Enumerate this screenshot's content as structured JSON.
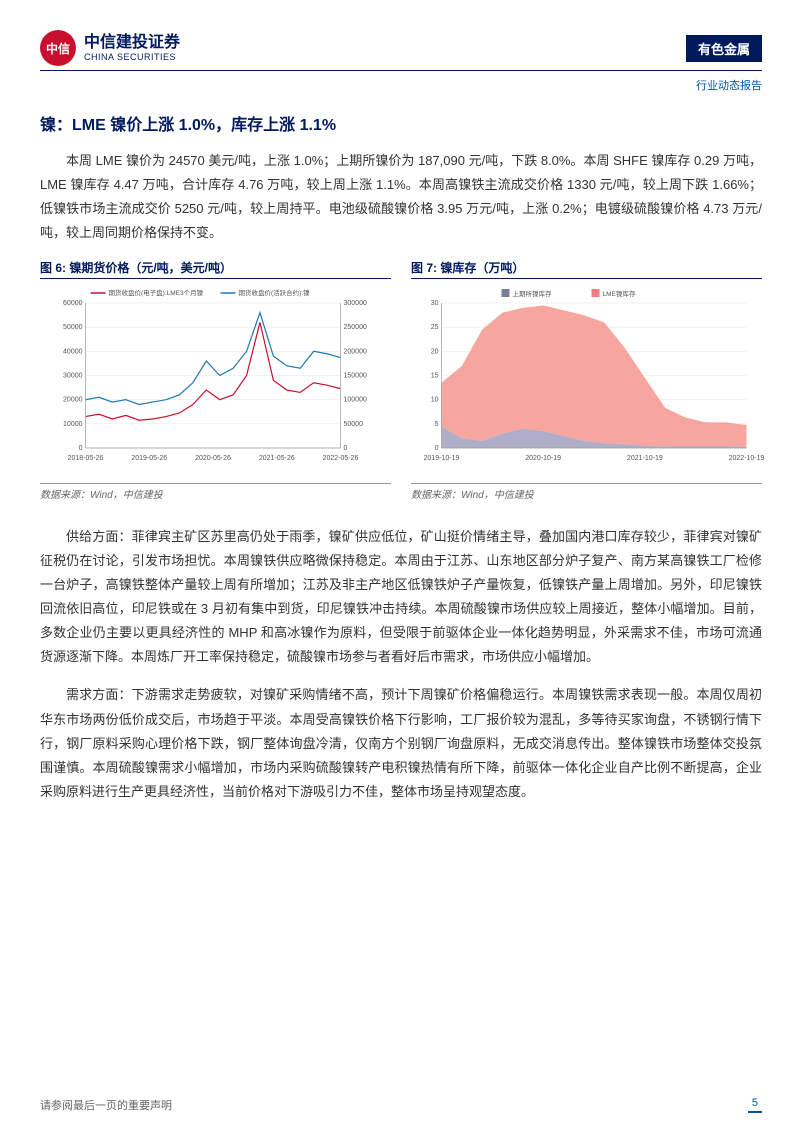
{
  "header": {
    "logo_cn": "中信建投证券",
    "logo_en": "CHINA SECURITIES",
    "logo_badge": "中信",
    "sector": "有色金属",
    "report_type": "行业动态报告"
  },
  "section": {
    "title": "镍：LME 镍价上涨 1.0%，库存上涨 1.1%"
  },
  "paragraphs": {
    "p1": "本周 LME 镍价为 24570 美元/吨，上涨 1.0%；上期所镍价为 187,090 元/吨，下跌 8.0%。本周 SHFE 镍库存 0.29 万吨，LME 镍库存 4.47 万吨，合计库存 4.76 万吨，较上周上涨 1.1%。本周高镍铁主流成交价格 1330 元/吨，较上周下跌 1.66%；低镍铁市场主流成交价 5250 元/吨，较上周持平。电池级硫酸镍价格 3.95 万元/吨，上涨 0.2%；电镀级硫酸镍价格 4.73 万元/吨，较上周同期价格保持不变。",
    "p2": "供给方面：菲律宾主矿区苏里高仍处于雨季，镍矿供应低位，矿山挺价情绪主导，叠加国内港口库存较少，菲律宾对镍矿征税仍在讨论，引发市场担忧。本周镍铁供应略微保持稳定。本周由于江苏、山东地区部分炉子复产、南方某高镍铁工厂检修一台炉子，高镍铁整体产量较上周有所增加；江苏及非主产地区低镍铁炉子产量恢复，低镍铁产量上周增加。另外，印尼镍铁回流依旧高位，印尼铁或在 3 月初有集中到货，印尼镍铁冲击持续。本周硫酸镍市场供应较上周接近，整体小幅增加。目前，多数企业仍主要以更具经济性的 MHP 和高冰镍作为原料，但受限于前驱体企业一体化趋势明显，外采需求不佳，市场可流通货源逐渐下降。本周炼厂开工率保持稳定，硫酸镍市场参与者看好后市需求，市场供应小幅增加。",
    "p3": "需求方面：下游需求走势疲软，对镍矿采购情绪不高，预计下周镍矿价格偏稳运行。本周镍铁需求表现一般。本周仅周初华东市场两份低价成交后，市场趋于平淡。本周受高镍铁价格下行影响，工厂报价较为混乱，多等待买家询盘，不锈钢行情下行，钢厂原料采购心理价格下跌，钢厂整体询盘冷清，仅南方个别钢厂询盘原料，无成交消息传出。整体镍铁市场整体交投氛围谨慎。本周硫酸镍需求小幅增加，市场内采购硫酸镍转产电积镍热情有所下降，前驱体一体化企业自产比例不断提高，企业采购原料进行生产更具经济性，当前价格对下游吸引力不佳，整体市场呈持观望态度。"
  },
  "figures": {
    "fig6": {
      "title": "图 6: 镍期货价格（元/吨，美元/吨）",
      "type": "line",
      "legend": [
        "期货收盘价(电子盘):LME3个月镍",
        "期货收盘价(活跃合约):镍"
      ],
      "legend_colors": [
        "#c8102e",
        "#1f77b4"
      ],
      "x_ticks": [
        "2018-05-26",
        "2019-05-26",
        "2020-05-26",
        "2021-05-26",
        "2022-05-26"
      ],
      "y1_ticks": [
        0,
        10000,
        20000,
        30000,
        40000,
        50000,
        60000
      ],
      "y2_ticks": [
        0,
        50000,
        100000,
        150000,
        200000,
        250000,
        300000
      ],
      "series1_color": "#c8102e",
      "series2_color": "#1f77b4",
      "series1_sample": [
        13000,
        14000,
        12000,
        13500,
        11500,
        12000,
        13000,
        14500,
        18000,
        24000,
        20000,
        22000,
        30000,
        52000,
        28000,
        24000,
        23000,
        27000,
        26000,
        24570
      ],
      "series2_sample": [
        100000,
        105000,
        95000,
        100000,
        90000,
        95000,
        100000,
        110000,
        135000,
        180000,
        150000,
        165000,
        200000,
        280000,
        190000,
        170000,
        165000,
        200000,
        195000,
        187090
      ],
      "background": "#ffffff",
      "grid_color": "#e5e5e5",
      "tick_fontsize": 7
    },
    "fig7": {
      "title": "图 7: 镍库存（万吨）",
      "type": "stacked_area",
      "legend": [
        "上期所镍库存",
        "LME镍库存"
      ],
      "legend_colors": [
        "#7d7d9e",
        "#f08080"
      ],
      "x_ticks": [
        "2019-10-19",
        "2020-10-19",
        "2021-10-19",
        "2022-10-19"
      ],
      "y_ticks": [
        0,
        5,
        10,
        15,
        20,
        25,
        30
      ],
      "series1_color": "#a0a0c0",
      "series2_color": "#f4978e",
      "series1_sample": [
        4.5,
        2,
        1.5,
        3,
        4,
        3.5,
        2.5,
        1.5,
        1,
        0.8,
        0.5,
        0.3,
        0.3,
        0.3,
        0.3,
        0.29
      ],
      "series2_sample": [
        9,
        15,
        23,
        25,
        25,
        26,
        26,
        26,
        25,
        20,
        14,
        8,
        6,
        5,
        5,
        4.47
      ],
      "background": "#ffffff",
      "grid_color": "#e5e5e5",
      "tick_fontsize": 7
    },
    "source": "数据来源：Wind，中信建投"
  },
  "footer": {
    "disclaimer": "请参阅最后一页的重要声明",
    "page": "5"
  }
}
